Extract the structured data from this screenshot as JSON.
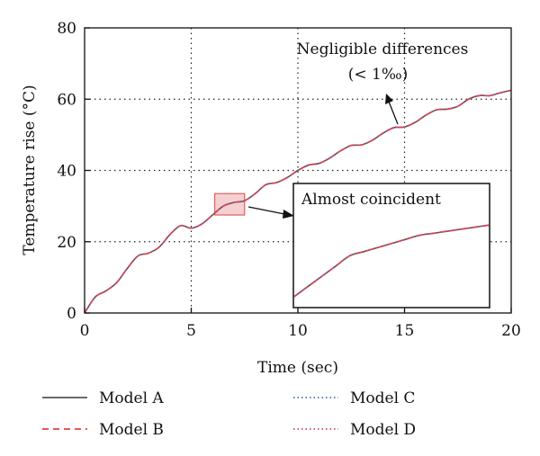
{
  "chart_data": {
    "type": "line",
    "xlabel": "Time (sec)",
    "ylabel": "Temperature rise (°C)",
    "xlim": [
      0,
      20
    ],
    "ylim": [
      0,
      80
    ],
    "xticks": [
      0,
      5,
      10,
      15,
      20
    ],
    "yticks": [
      0,
      20,
      40,
      60,
      80
    ],
    "grid": "dotted at x=5,10,15 and y=20,40,60",
    "legend_placement": "bottom",
    "x": [
      0,
      0.5,
      1,
      1.5,
      2,
      2.5,
      3,
      3.5,
      4,
      4.5,
      5,
      5.5,
      6,
      6.5,
      7,
      7.5,
      8,
      8.5,
      9,
      9.5,
      10,
      10.5,
      11,
      11.5,
      12,
      12.5,
      13,
      13.5,
      14,
      14.5,
      15,
      15.5,
      16,
      16.5,
      17,
      17.5,
      18,
      18.5,
      19,
      19.5,
      20
    ],
    "series": [
      {
        "name": "Model A",
        "color": "#555555",
        "style": "solid",
        "values": [
          0,
          4.5,
          6.2,
          8.5,
          12.5,
          16,
          16.8,
          18.5,
          22,
          24.5,
          23.8,
          25,
          27.5,
          30,
          31,
          31.5,
          33.5,
          36,
          36.6,
          38,
          40,
          41.5,
          42,
          43.5,
          45.5,
          47,
          47.2,
          48.5,
          50.5,
          52,
          52.2,
          53.5,
          55.5,
          57,
          57.2,
          58,
          60,
          61,
          61,
          61.8,
          62.5
        ]
      },
      {
        "name": "Model B",
        "color": "#e8413c",
        "style": "dashed",
        "values": [
          0,
          4.5,
          6.2,
          8.5,
          12.5,
          16,
          16.8,
          18.5,
          22,
          24.5,
          23.8,
          25,
          27.5,
          30,
          31,
          31.5,
          33.5,
          36,
          36.6,
          38,
          40,
          41.5,
          42,
          43.5,
          45.5,
          47,
          47.2,
          48.5,
          50.5,
          52,
          52.2,
          53.5,
          55.5,
          57,
          57.2,
          58,
          60,
          61,
          61,
          61.8,
          62.5
        ]
      },
      {
        "name": "Model C",
        "color": "#4a6fb0",
        "style": "dotted",
        "values": [
          0,
          4.5,
          6.2,
          8.5,
          12.5,
          16,
          16.8,
          18.5,
          22,
          24.5,
          23.8,
          25,
          27.5,
          30,
          31,
          31.5,
          33.5,
          36,
          36.6,
          38,
          40,
          41.5,
          42,
          43.5,
          45.5,
          47,
          47.2,
          48.5,
          50.5,
          52,
          52.2,
          53.5,
          55.5,
          57,
          57.2,
          58,
          60,
          61,
          61,
          61.8,
          62.5
        ]
      },
      {
        "name": "Model D",
        "color": "#c8417a",
        "style": "dotted",
        "values": [
          0,
          4.5,
          6.2,
          8.5,
          12.5,
          16,
          16.8,
          18.5,
          22,
          24.5,
          23.8,
          25,
          27.5,
          30,
          31,
          31.5,
          33.5,
          36,
          36.6,
          38,
          40,
          41.5,
          42,
          43.5,
          45.5,
          47,
          47.2,
          48.5,
          50.5,
          52,
          52.2,
          53.5,
          55.5,
          57,
          57.2,
          58,
          60,
          61,
          61,
          61.8,
          62.5
        ]
      }
    ],
    "annotations": {
      "negligible_line1": "Negligible differences",
      "negligible_line2": "(< 1‰)",
      "inset_title": "Almost coincident"
    },
    "zoom_region": {
      "x_from": 6.1,
      "x_to": 7.5,
      "y_from": 27.5,
      "y_to": 33.5
    }
  }
}
